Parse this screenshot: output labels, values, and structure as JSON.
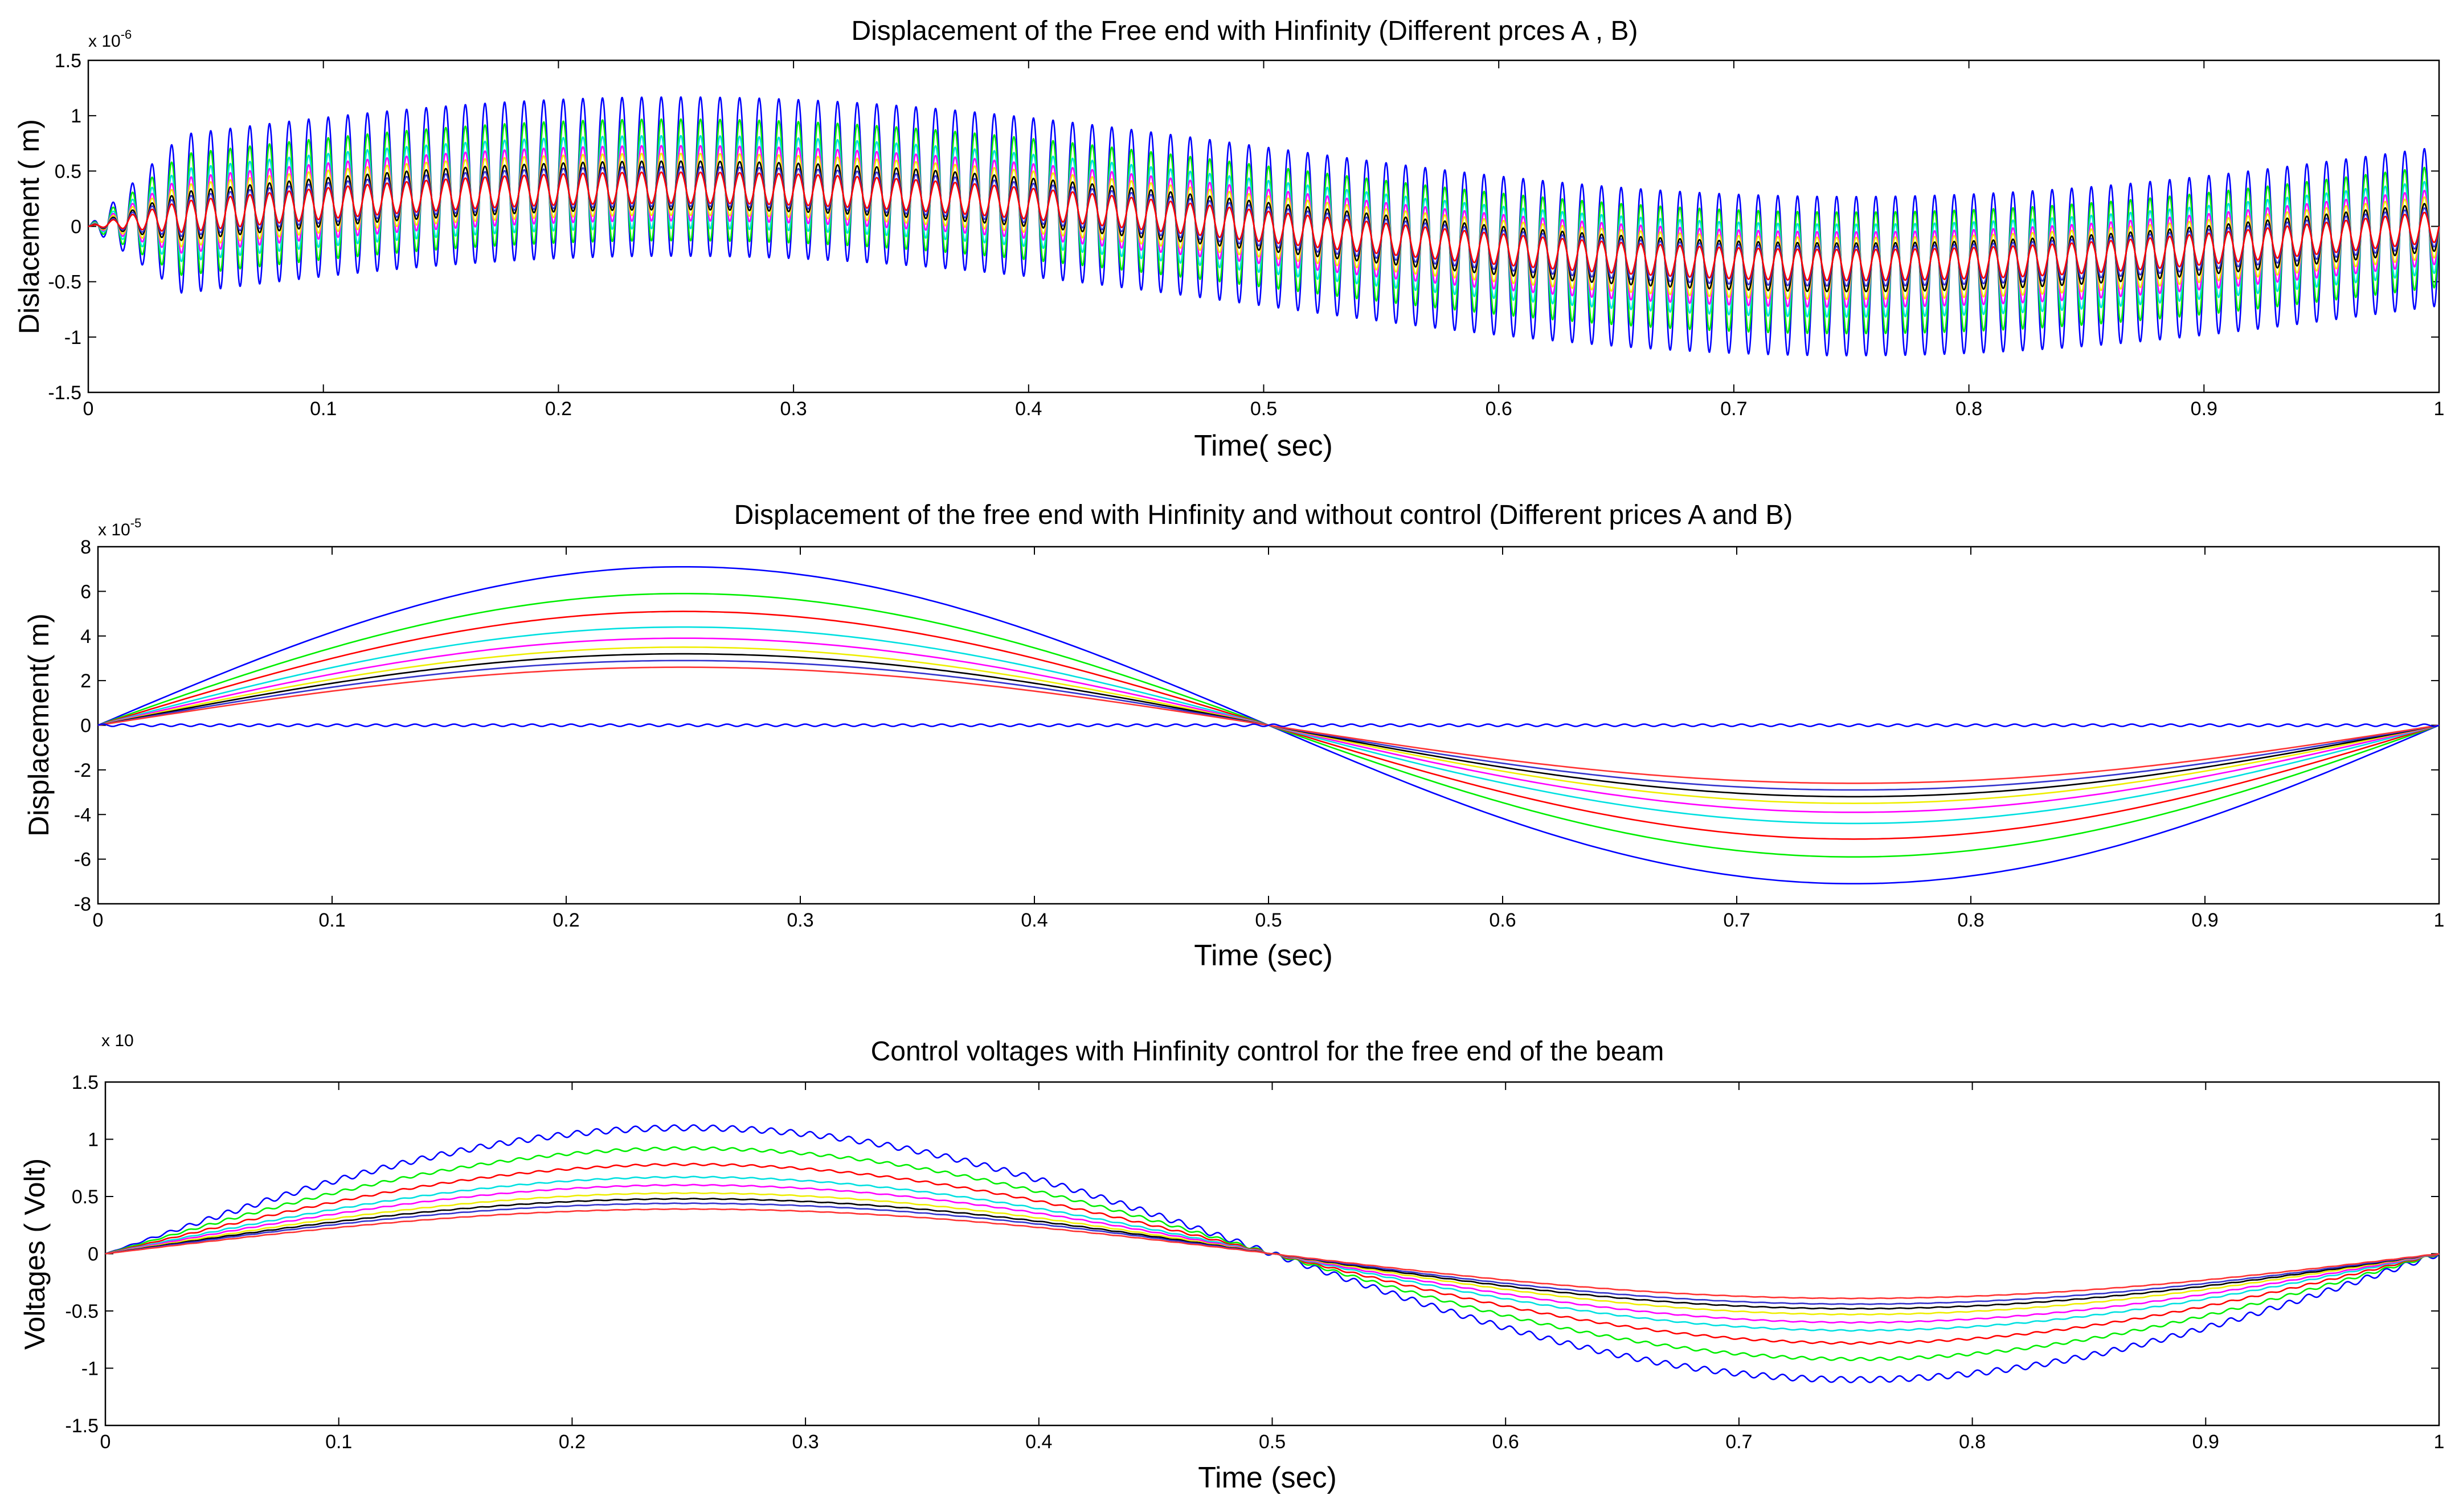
{
  "chart_data": [
    {
      "type": "line",
      "title": "Displacement of the Free end with Hinfinity (Different prces  A , B)",
      "xlabel": "Time( sec)",
      "ylabel": "Dislacement ( m)",
      "exponent": {
        "base": "x 10",
        "power": "-6"
      },
      "xlim": [
        0,
        1
      ],
      "ylim": [
        -1.5,
        1.5
      ],
      "xticks": [
        "0",
        "0.1",
        "0.2",
        "0.3",
        "0.4",
        "0.5",
        "0.6",
        "0.7",
        "0.8",
        "0.9",
        "1"
      ],
      "yticks": [
        "1.5",
        "1",
        "0.5",
        "0",
        "-0.5",
        "-1",
        "-1.5"
      ],
      "model": "slow sine (period 1 s) plus oscillation at ~120 Hz",
      "series": [
        {
          "name": "blue",
          "color": "#0000ff",
          "slow_amplitude": 0.45,
          "ripple_amplitude": 0.72
        },
        {
          "name": "green",
          "color": "#00ee00",
          "slow_amplitude": 0.42,
          "ripple_amplitude": 0.55
        },
        {
          "name": "cyan",
          "color": "#00e0e0",
          "slow_amplitude": 0.4,
          "ripple_amplitude": 0.42
        },
        {
          "name": "magenta",
          "color": "#ff00ff",
          "slow_amplitude": 0.39,
          "ripple_amplitude": 0.34
        },
        {
          "name": "yellow",
          "color": "#eeee00",
          "slow_amplitude": 0.38,
          "ripple_amplitude": 0.28
        },
        {
          "name": "black",
          "color": "#000000",
          "slow_amplitude": 0.37,
          "ripple_amplitude": 0.22
        },
        {
          "name": "blue-2",
          "color": "#3333cc",
          "slow_amplitude": 0.36,
          "ripple_amplitude": 0.18
        },
        {
          "name": "red",
          "color": "#ff0000",
          "slow_amplitude": 0.35,
          "ripple_amplitude": 0.14
        }
      ]
    },
    {
      "type": "line",
      "title": "Displacement of the free end with Hinfinity and without control (Different prices A and B)",
      "xlabel": "Time (sec)",
      "ylabel": "Displacement( m)",
      "exponent": {
        "base": "x 10",
        "power": "-5"
      },
      "xlim": [
        0,
        1
      ],
      "ylim": [
        -8,
        8
      ],
      "xticks": [
        "0",
        "0.1",
        "0.2",
        "0.3",
        "0.4",
        "0.5",
        "0.6",
        "0.7",
        "0.8",
        "0.9",
        "1"
      ],
      "yticks": [
        "8",
        "6",
        "4",
        "2",
        "0",
        "-2",
        "-4",
        "-6",
        "-8"
      ],
      "model": "peak amplitude of sine with period 1 s",
      "series": [
        {
          "name": "blue",
          "color": "#0000ff",
          "amplitude": 7.1
        },
        {
          "name": "green",
          "color": "#00ee00",
          "amplitude": 5.9
        },
        {
          "name": "red",
          "color": "#ff0000",
          "amplitude": 5.1
        },
        {
          "name": "cyan",
          "color": "#00e0e0",
          "amplitude": 4.4
        },
        {
          "name": "magenta",
          "color": "#ff00ff",
          "amplitude": 3.9
        },
        {
          "name": "yellow",
          "color": "#eeee00",
          "amplitude": 3.5
        },
        {
          "name": "black",
          "color": "#000000",
          "amplitude": 3.2
        },
        {
          "name": "blue-2",
          "color": "#3333cc",
          "amplitude": 2.9
        },
        {
          "name": "red-2",
          "color": "#ff3333",
          "amplitude": 2.6
        },
        {
          "name": "controlled (Hinfinity)",
          "color": "#0000ff",
          "amplitude": 0.05
        }
      ]
    },
    {
      "type": "line",
      "title": "Control  voltages with Hinfinity control for the free end of the beam",
      "xlabel": "Time (sec)",
      "ylabel": "Voltages ( Volt)",
      "exponent": {
        "base": "x 10",
        "power": ""
      },
      "xlim": [
        0,
        1
      ],
      "ylim": [
        -1.5,
        1.5
      ],
      "xticks": [
        "0",
        "0.1",
        "0.2",
        "0.3",
        "0.4",
        "0.5",
        "0.6",
        "0.7",
        "0.8",
        "0.9",
        "1"
      ],
      "yticks": [
        "1.5",
        "1",
        "0.5",
        "0",
        "-0.5",
        "-1",
        "-1.5"
      ],
      "model": "peak amplitude of sine with period 1 s plus small ripple",
      "series": [
        {
          "name": "blue",
          "color": "#0000ff",
          "amplitude": 1.1,
          "ripple_amplitude": 0.025
        },
        {
          "name": "green",
          "color": "#00ee00",
          "amplitude": 0.92,
          "ripple_amplitude": 0.012
        },
        {
          "name": "red",
          "color": "#ff0000",
          "amplitude": 0.78,
          "ripple_amplitude": 0.008
        },
        {
          "name": "cyan",
          "color": "#00e0e0",
          "amplitude": 0.67,
          "ripple_amplitude": 0.005
        },
        {
          "name": "magenta",
          "color": "#ff00ff",
          "amplitude": 0.6,
          "ripple_amplitude": 0.004
        },
        {
          "name": "yellow",
          "color": "#eeee00",
          "amplitude": 0.53,
          "ripple_amplitude": 0.003
        },
        {
          "name": "black",
          "color": "#000000",
          "amplitude": 0.48,
          "ripple_amplitude": 0.003
        },
        {
          "name": "blue-2",
          "color": "#3333cc",
          "amplitude": 0.44,
          "ripple_amplitude": 0.002
        },
        {
          "name": "red-2",
          "color": "#ff3333",
          "amplitude": 0.39,
          "ripple_amplitude": 0.002
        }
      ]
    }
  ]
}
